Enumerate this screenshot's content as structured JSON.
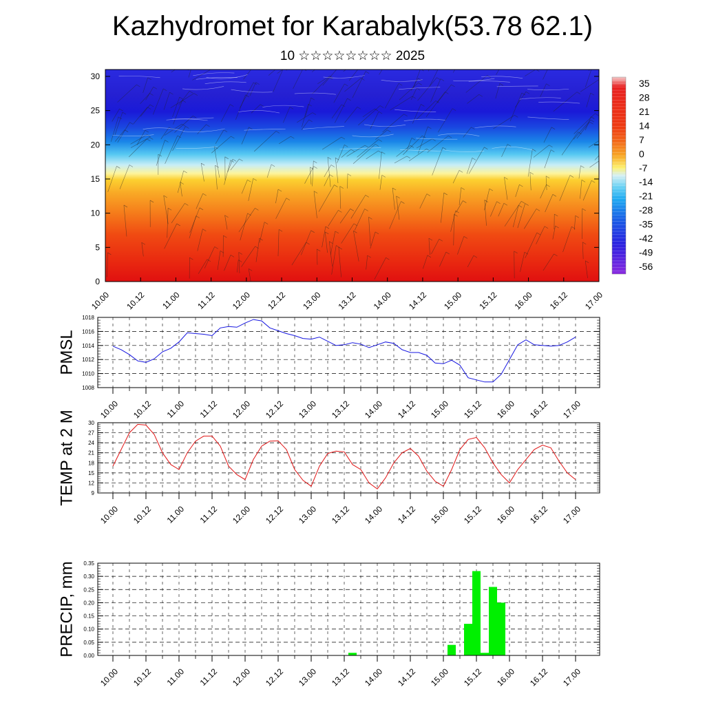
{
  "title": "Kazhydromet for Karabalyk(53.78 62.1)",
  "subtitle": "10 ☆☆☆☆☆☆☆☆ 2025",
  "colors": {
    "pmsl": "#1515e0",
    "temp": "#e01515",
    "precip": "#00f000"
  },
  "chart_data": [
    {
      "type": "heatmap",
      "name_key": "cross-section",
      "x_ticks": [
        "10.00",
        "10.12",
        "11.00",
        "11.12",
        "12.00",
        "12.12",
        "13.00",
        "13.12",
        "14.00",
        "14.12",
        "15.00",
        "15.12",
        "16.00",
        "16.12",
        "17.00"
      ],
      "y_ticks": [
        "0",
        "5",
        "10",
        "15",
        "20",
        "25",
        "30"
      ],
      "ylim": [
        0,
        31
      ],
      "colorbar_labels": [
        "35",
        "28",
        "21",
        "14",
        "7",
        "0",
        "-7",
        "-14",
        "-21",
        "-28",
        "-35",
        "-42",
        "-49",
        "-56"
      ]
    },
    {
      "type": "line",
      "ylabel": "PMSL",
      "x_ticks": [
        "10.00",
        "10.12",
        "11.00",
        "11.12",
        "12.00",
        "12.12",
        "13.00",
        "13.12",
        "14.00",
        "14.12",
        "15.00",
        "15.12",
        "16.00",
        "16.12",
        "17.00"
      ],
      "y_ticks": [
        "1018",
        "1016",
        "1014",
        "1012",
        "1010",
        "1008"
      ],
      "ylim": [
        1008,
        1018
      ],
      "values": [
        1013.9,
        1013.4,
        1012.7,
        1011.8,
        1011.6,
        1012.1,
        1013.1,
        1013.6,
        1014.5,
        1015.8,
        1015.7,
        1015.6,
        1015.4,
        1016.5,
        1016.7,
        1016.6,
        1017.2,
        1017.7,
        1017.5,
        1016.5,
        1016.1,
        1015.7,
        1015.4,
        1015.0,
        1014.9,
        1015.2,
        1014.6,
        1014.0,
        1014.1,
        1014.4,
        1014.2,
        1013.7,
        1014.1,
        1014.5,
        1014.3,
        1013.4,
        1013.0,
        1013.0,
        1012.6,
        1011.5,
        1011.4,
        1011.9,
        1011.2,
        1009.4,
        1009.1,
        1008.8,
        1008.8,
        1009.9,
        1012.0,
        1014.1,
        1014.8,
        1014.1,
        1014.0,
        1013.9,
        1014.0,
        1014.5,
        1015.2
      ]
    },
    {
      "type": "line",
      "ylabel": "TEMP at 2 M",
      "x_ticks": [
        "10.00",
        "10.12",
        "11.00",
        "11.12",
        "12.00",
        "12.12",
        "13.00",
        "13.12",
        "14.00",
        "14.12",
        "15.00",
        "15.12",
        "16.00",
        "16.12",
        "17.00"
      ],
      "y_ticks": [
        "30",
        "27",
        "24",
        "21",
        "18",
        "15",
        "12",
        "9"
      ],
      "ylim": [
        9,
        30
      ],
      "values": [
        17.0,
        22.0,
        27.0,
        29.5,
        29.3,
        26.5,
        21.0,
        17.5,
        16.0,
        21.0,
        24.5,
        26.0,
        26.0,
        23.0,
        17.0,
        14.5,
        13.0,
        19.0,
        23.0,
        24.5,
        24.6,
        22.0,
        16.0,
        12.8,
        11.0,
        17.0,
        20.8,
        21.5,
        21.3,
        17.5,
        16.0,
        12.0,
        10.2,
        13.5,
        18.0,
        21.0,
        22.3,
        20.0,
        15.5,
        12.5,
        11.0,
        16.0,
        22.0,
        25.0,
        25.6,
        22.5,
        18.0,
        14.5,
        12.0,
        16.0,
        19.0,
        22.0,
        23.3,
        22.5,
        18.5,
        15.0,
        13.0
      ]
    },
    {
      "type": "bar",
      "ylabel": "PRECIP, mm",
      "x_ticks": [
        "10.00",
        "10.12",
        "11.00",
        "11.12",
        "12.00",
        "12.12",
        "13.00",
        "13.12",
        "14.00",
        "14.12",
        "15.00",
        "15.12",
        "16.00",
        "16.12",
        "17.00"
      ],
      "y_ticks": [
        "0.35",
        "0.30",
        "0.25",
        "0.20",
        "0.15",
        "0.10",
        "0.05",
        "0.00"
      ],
      "ylim": [
        0,
        0.35
      ],
      "bars": [
        {
          "step": 29,
          "value": 0.01
        },
        {
          "step": 41,
          "value": 0.04
        },
        {
          "step": 43,
          "value": 0.12
        },
        {
          "step": 44,
          "value": 0.32
        },
        {
          "step": 45,
          "value": 0.01
        },
        {
          "step": 46,
          "value": 0.26
        },
        {
          "step": 47,
          "value": 0.2
        }
      ]
    }
  ]
}
